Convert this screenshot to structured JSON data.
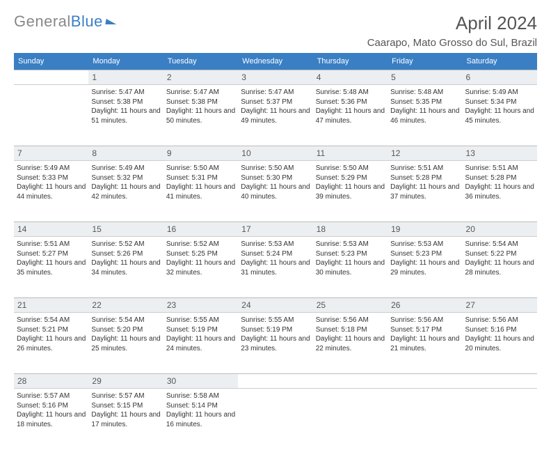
{
  "brand": {
    "text_gray": "General",
    "text_blue": "Blue"
  },
  "title": "April 2024",
  "location": "Caarapo, Mato Grosso do Sul, Brazil",
  "colors": {
    "header_bg": "#3a7fc4",
    "header_text": "#ffffff",
    "daynum_bg": "#eceff1",
    "border": "#cccccc",
    "text": "#333333",
    "title_text": "#555555"
  },
  "day_headers": [
    "Sunday",
    "Monday",
    "Tuesday",
    "Wednesday",
    "Thursday",
    "Friday",
    "Saturday"
  ],
  "weeks": [
    {
      "nums": [
        "",
        "1",
        "2",
        "3",
        "4",
        "5",
        "6"
      ],
      "cells": [
        null,
        {
          "sunrise": "5:47 AM",
          "sunset": "5:38 PM",
          "daylight": "11 hours and 51 minutes."
        },
        {
          "sunrise": "5:47 AM",
          "sunset": "5:38 PM",
          "daylight": "11 hours and 50 minutes."
        },
        {
          "sunrise": "5:47 AM",
          "sunset": "5:37 PM",
          "daylight": "11 hours and 49 minutes."
        },
        {
          "sunrise": "5:48 AM",
          "sunset": "5:36 PM",
          "daylight": "11 hours and 47 minutes."
        },
        {
          "sunrise": "5:48 AM",
          "sunset": "5:35 PM",
          "daylight": "11 hours and 46 minutes."
        },
        {
          "sunrise": "5:49 AM",
          "sunset": "5:34 PM",
          "daylight": "11 hours and 45 minutes."
        }
      ]
    },
    {
      "nums": [
        "7",
        "8",
        "9",
        "10",
        "11",
        "12",
        "13"
      ],
      "cells": [
        {
          "sunrise": "5:49 AM",
          "sunset": "5:33 PM",
          "daylight": "11 hours and 44 minutes."
        },
        {
          "sunrise": "5:49 AM",
          "sunset": "5:32 PM",
          "daylight": "11 hours and 42 minutes."
        },
        {
          "sunrise": "5:50 AM",
          "sunset": "5:31 PM",
          "daylight": "11 hours and 41 minutes."
        },
        {
          "sunrise": "5:50 AM",
          "sunset": "5:30 PM",
          "daylight": "11 hours and 40 minutes."
        },
        {
          "sunrise": "5:50 AM",
          "sunset": "5:29 PM",
          "daylight": "11 hours and 39 minutes."
        },
        {
          "sunrise": "5:51 AM",
          "sunset": "5:28 PM",
          "daylight": "11 hours and 37 minutes."
        },
        {
          "sunrise": "5:51 AM",
          "sunset": "5:28 PM",
          "daylight": "11 hours and 36 minutes."
        }
      ]
    },
    {
      "nums": [
        "14",
        "15",
        "16",
        "17",
        "18",
        "19",
        "20"
      ],
      "cells": [
        {
          "sunrise": "5:51 AM",
          "sunset": "5:27 PM",
          "daylight": "11 hours and 35 minutes."
        },
        {
          "sunrise": "5:52 AM",
          "sunset": "5:26 PM",
          "daylight": "11 hours and 34 minutes."
        },
        {
          "sunrise": "5:52 AM",
          "sunset": "5:25 PM",
          "daylight": "11 hours and 32 minutes."
        },
        {
          "sunrise": "5:53 AM",
          "sunset": "5:24 PM",
          "daylight": "11 hours and 31 minutes."
        },
        {
          "sunrise": "5:53 AM",
          "sunset": "5:23 PM",
          "daylight": "11 hours and 30 minutes."
        },
        {
          "sunrise": "5:53 AM",
          "sunset": "5:23 PM",
          "daylight": "11 hours and 29 minutes."
        },
        {
          "sunrise": "5:54 AM",
          "sunset": "5:22 PM",
          "daylight": "11 hours and 28 minutes."
        }
      ]
    },
    {
      "nums": [
        "21",
        "22",
        "23",
        "24",
        "25",
        "26",
        "27"
      ],
      "cells": [
        {
          "sunrise": "5:54 AM",
          "sunset": "5:21 PM",
          "daylight": "11 hours and 26 minutes."
        },
        {
          "sunrise": "5:54 AM",
          "sunset": "5:20 PM",
          "daylight": "11 hours and 25 minutes."
        },
        {
          "sunrise": "5:55 AM",
          "sunset": "5:19 PM",
          "daylight": "11 hours and 24 minutes."
        },
        {
          "sunrise": "5:55 AM",
          "sunset": "5:19 PM",
          "daylight": "11 hours and 23 minutes."
        },
        {
          "sunrise": "5:56 AM",
          "sunset": "5:18 PM",
          "daylight": "11 hours and 22 minutes."
        },
        {
          "sunrise": "5:56 AM",
          "sunset": "5:17 PM",
          "daylight": "11 hours and 21 minutes."
        },
        {
          "sunrise": "5:56 AM",
          "sunset": "5:16 PM",
          "daylight": "11 hours and 20 minutes."
        }
      ]
    },
    {
      "nums": [
        "28",
        "29",
        "30",
        "",
        "",
        "",
        ""
      ],
      "cells": [
        {
          "sunrise": "5:57 AM",
          "sunset": "5:16 PM",
          "daylight": "11 hours and 18 minutes."
        },
        {
          "sunrise": "5:57 AM",
          "sunset": "5:15 PM",
          "daylight": "11 hours and 17 minutes."
        },
        {
          "sunrise": "5:58 AM",
          "sunset": "5:14 PM",
          "daylight": "11 hours and 16 minutes."
        },
        null,
        null,
        null,
        null
      ]
    }
  ],
  "labels": {
    "sunrise": "Sunrise:",
    "sunset": "Sunset:",
    "daylight": "Daylight:"
  }
}
